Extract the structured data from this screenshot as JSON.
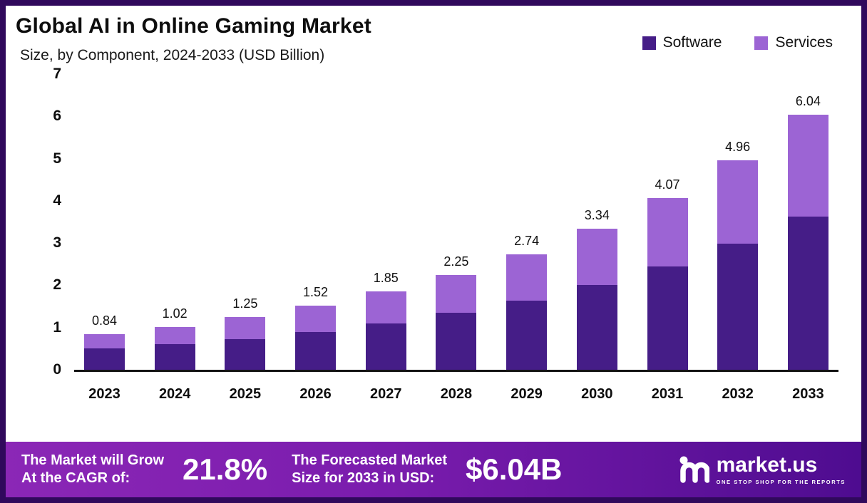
{
  "header": {
    "title": "Global AI in Online Gaming Market",
    "subtitle": "Size, by Component, 2024-2033 (USD Billion)"
  },
  "legend": {
    "items": [
      {
        "label": "Software",
        "color": "#451d87"
      },
      {
        "label": "Services",
        "color": "#9c64d4"
      }
    ]
  },
  "chart_data": {
    "type": "bar",
    "stacked": true,
    "title": "Global AI in Online Gaming Market",
    "subtitle": "Size, by Component, 2024-2033 (USD Billion)",
    "categories": [
      "2023",
      "2024",
      "2025",
      "2026",
      "2027",
      "2028",
      "2029",
      "2030",
      "2031",
      "2032",
      "2033"
    ],
    "series": [
      {
        "name": "Software",
        "color": "#451d87",
        "values": [
          0.5,
          0.6,
          0.73,
          0.9,
          1.1,
          1.35,
          1.63,
          2.0,
          2.44,
          2.98,
          3.63
        ]
      },
      {
        "name": "Services",
        "color": "#9c64d4",
        "values": [
          0.34,
          0.42,
          0.52,
          0.62,
          0.75,
          0.9,
          1.11,
          1.34,
          1.63,
          1.98,
          2.41
        ]
      }
    ],
    "totals": [
      0.84,
      1.02,
      1.25,
      1.52,
      1.85,
      2.25,
      2.74,
      3.34,
      4.07,
      4.96,
      6.04
    ],
    "ylim": [
      0,
      7
    ],
    "yticks": [
      0,
      1,
      2,
      3,
      4,
      5,
      6,
      7
    ],
    "xlabel": "",
    "ylabel": "",
    "grid": false,
    "legend_position": "top-right"
  },
  "footer": {
    "cagr_label_line1": "The Market will Grow",
    "cagr_label_line2": "At the CAGR of:",
    "cagr_value": "21.8%",
    "forecast_label_line1": "The Forecasted Market",
    "forecast_label_line2": "Size for 2033 in USD:",
    "forecast_value": "$6.04B",
    "brand_name": "market.us",
    "brand_tagline": "ONE STOP SHOP FOR THE REPORTS"
  }
}
